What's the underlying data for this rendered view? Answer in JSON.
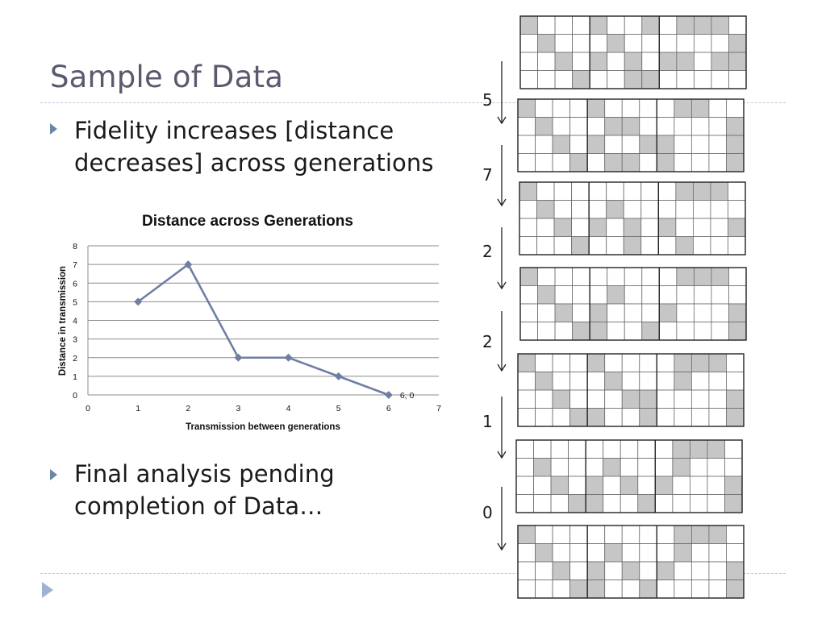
{
  "slide": {
    "title": "Sample of Data",
    "bullets": [
      "Fidelity increases [distance decreases] across generations",
      "Final analysis pending completion of Data…"
    ]
  },
  "chart_data": {
    "type": "line",
    "title": "Distance across Generations",
    "xlabel": "Transmission between generations",
    "ylabel": "Distance in transmission",
    "xlim": [
      0,
      7
    ],
    "ylim": [
      0,
      8
    ],
    "x_ticks": [
      "0",
      "1",
      "2",
      "3",
      "4",
      "5",
      "6",
      "7"
    ],
    "y_ticks": [
      "0",
      "1",
      "2",
      "3",
      "4",
      "5",
      "6",
      "7",
      "8"
    ],
    "grid": true,
    "series": [
      {
        "x": [
          1,
          2,
          3,
          4,
          5,
          6
        ],
        "values": [
          5,
          7,
          2,
          2,
          1,
          0
        ],
        "color": "#6f7ea3"
      }
    ],
    "annotations": [
      {
        "x": 6,
        "y": 0,
        "text": "6, 0"
      }
    ]
  },
  "generations": {
    "distances": [
      "5",
      "7",
      "2",
      "2",
      "1",
      "0"
    ],
    "fill_color": "#c6c6c6",
    "grids": [
      [
        "1000100101110",
        "0100010000001",
        "0010101011011",
        "0001001100000"
      ],
      [
        "1000100001100",
        "0100011000001",
        "0010100110001",
        "0001011010001"
      ],
      [
        "1000000001110",
        "0100010000000",
        "0010101010001",
        "0001001001000"
      ],
      [
        "1000000001110",
        "0100010000000",
        "0010100010001",
        "0001100100001"
      ],
      [
        "1000100001110",
        "0100010001000",
        "0010001100001",
        "0001100100001"
      ],
      [
        "0000000001110",
        "0100010001000",
        "0010101010001",
        "0001100100001"
      ],
      [
        "1000000001110",
        "0100010001000",
        "0010101010001",
        "0001100100001"
      ]
    ]
  }
}
